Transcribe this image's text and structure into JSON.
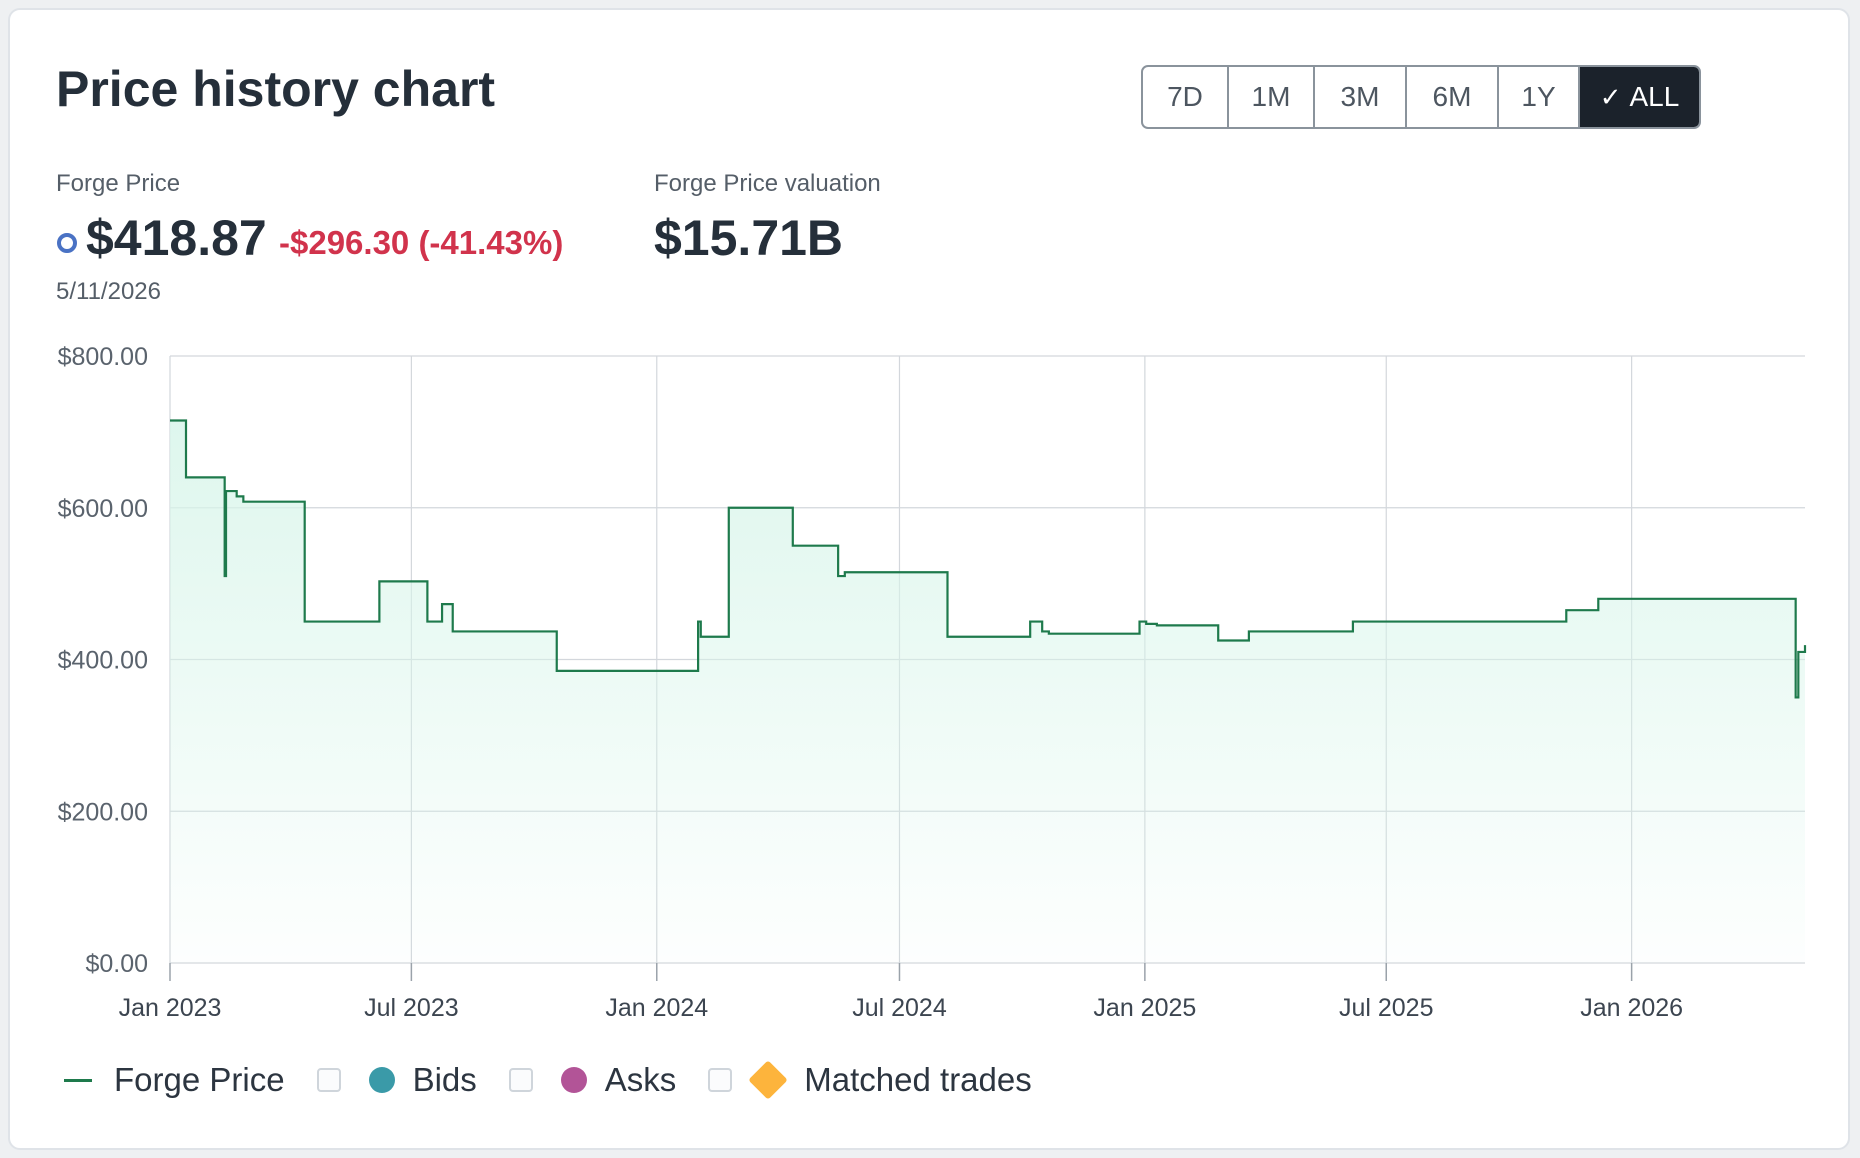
{
  "header": {
    "title": "Price history chart"
  },
  "range_selector": {
    "options": [
      "7D",
      "1M",
      "3M",
      "6M",
      "1Y",
      "ALL"
    ],
    "selected": "ALL"
  },
  "metrics": {
    "price_label": "Forge Price",
    "price_value": "$418.87",
    "price_change": "-$296.30 (-41.43%)",
    "price_date": "5/11/2026",
    "valuation_label": "Forge Price valuation",
    "valuation_value": "$15.71B"
  },
  "legend": {
    "forge_price": "Forge Price",
    "bids": "Bids",
    "asks": "Asks",
    "matched_trades": "Matched trades"
  },
  "colors": {
    "line": "#1e7a4c",
    "area": "#d8f5ea",
    "negative": "#d1334c",
    "bids": "#3a9aa8",
    "asks": "#b25497",
    "matched_trades": "#fdb43c",
    "active_button": "#1b222b"
  },
  "chart_data": {
    "type": "area",
    "title": "",
    "xlabel": "",
    "ylabel": "",
    "x_domain": [
      "2023-01-01",
      "2026-05-11"
    ],
    "ylim": [
      0,
      800
    ],
    "y_ticks": [
      0,
      200,
      400,
      600,
      800
    ],
    "y_tick_labels": [
      "$0.00",
      "$200.00",
      "$400.00",
      "$600.00",
      "$800.00"
    ],
    "x_ticks": [
      "2023-01-01",
      "2023-07-01",
      "2024-01-01",
      "2024-07-01",
      "2025-01-01",
      "2025-07-01",
      "2026-01-01"
    ],
    "x_tick_labels": [
      "Jan 2023",
      "Jul 2023",
      "Jan 2024",
      "Jul 2024",
      "Jan 2025",
      "Jul 2025",
      "Jan 2026"
    ],
    "grid": true,
    "series": [
      {
        "name": "Forge Price",
        "step": true,
        "points": [
          [
            "2023-01-01",
            715
          ],
          [
            "2023-01-08",
            715
          ],
          [
            "2023-01-13",
            640
          ],
          [
            "2023-02-10",
            640
          ],
          [
            "2023-02-11",
            510
          ],
          [
            "2023-02-12",
            622
          ],
          [
            "2023-02-20",
            615
          ],
          [
            "2023-02-25",
            608
          ],
          [
            "2023-04-12",
            450
          ],
          [
            "2023-06-03",
            450
          ],
          [
            "2023-06-07",
            503
          ],
          [
            "2023-07-13",
            450
          ],
          [
            "2023-07-24",
            473
          ],
          [
            "2023-08-01",
            437
          ],
          [
            "2023-10-18",
            385
          ],
          [
            "2024-01-31",
            385
          ],
          [
            "2024-02-01",
            450
          ],
          [
            "2024-02-03",
            430
          ],
          [
            "2024-02-24",
            600
          ],
          [
            "2024-04-12",
            550
          ],
          [
            "2024-05-16",
            510
          ],
          [
            "2024-05-21",
            515
          ],
          [
            "2024-08-06",
            430
          ],
          [
            "2024-10-07",
            450
          ],
          [
            "2024-10-16",
            437
          ],
          [
            "2024-10-21",
            434
          ],
          [
            "2024-12-28",
            450
          ],
          [
            "2025-01-02",
            447
          ],
          [
            "2025-01-10",
            445
          ],
          [
            "2025-02-25",
            425
          ],
          [
            "2025-03-20",
            437
          ],
          [
            "2025-06-06",
            450
          ],
          [
            "2025-11-13",
            465
          ],
          [
            "2025-12-07",
            480
          ],
          [
            "2026-05-03",
            480
          ],
          [
            "2026-05-04",
            350
          ],
          [
            "2026-05-06",
            410
          ],
          [
            "2026-05-11",
            418.87
          ]
        ]
      }
    ]
  }
}
